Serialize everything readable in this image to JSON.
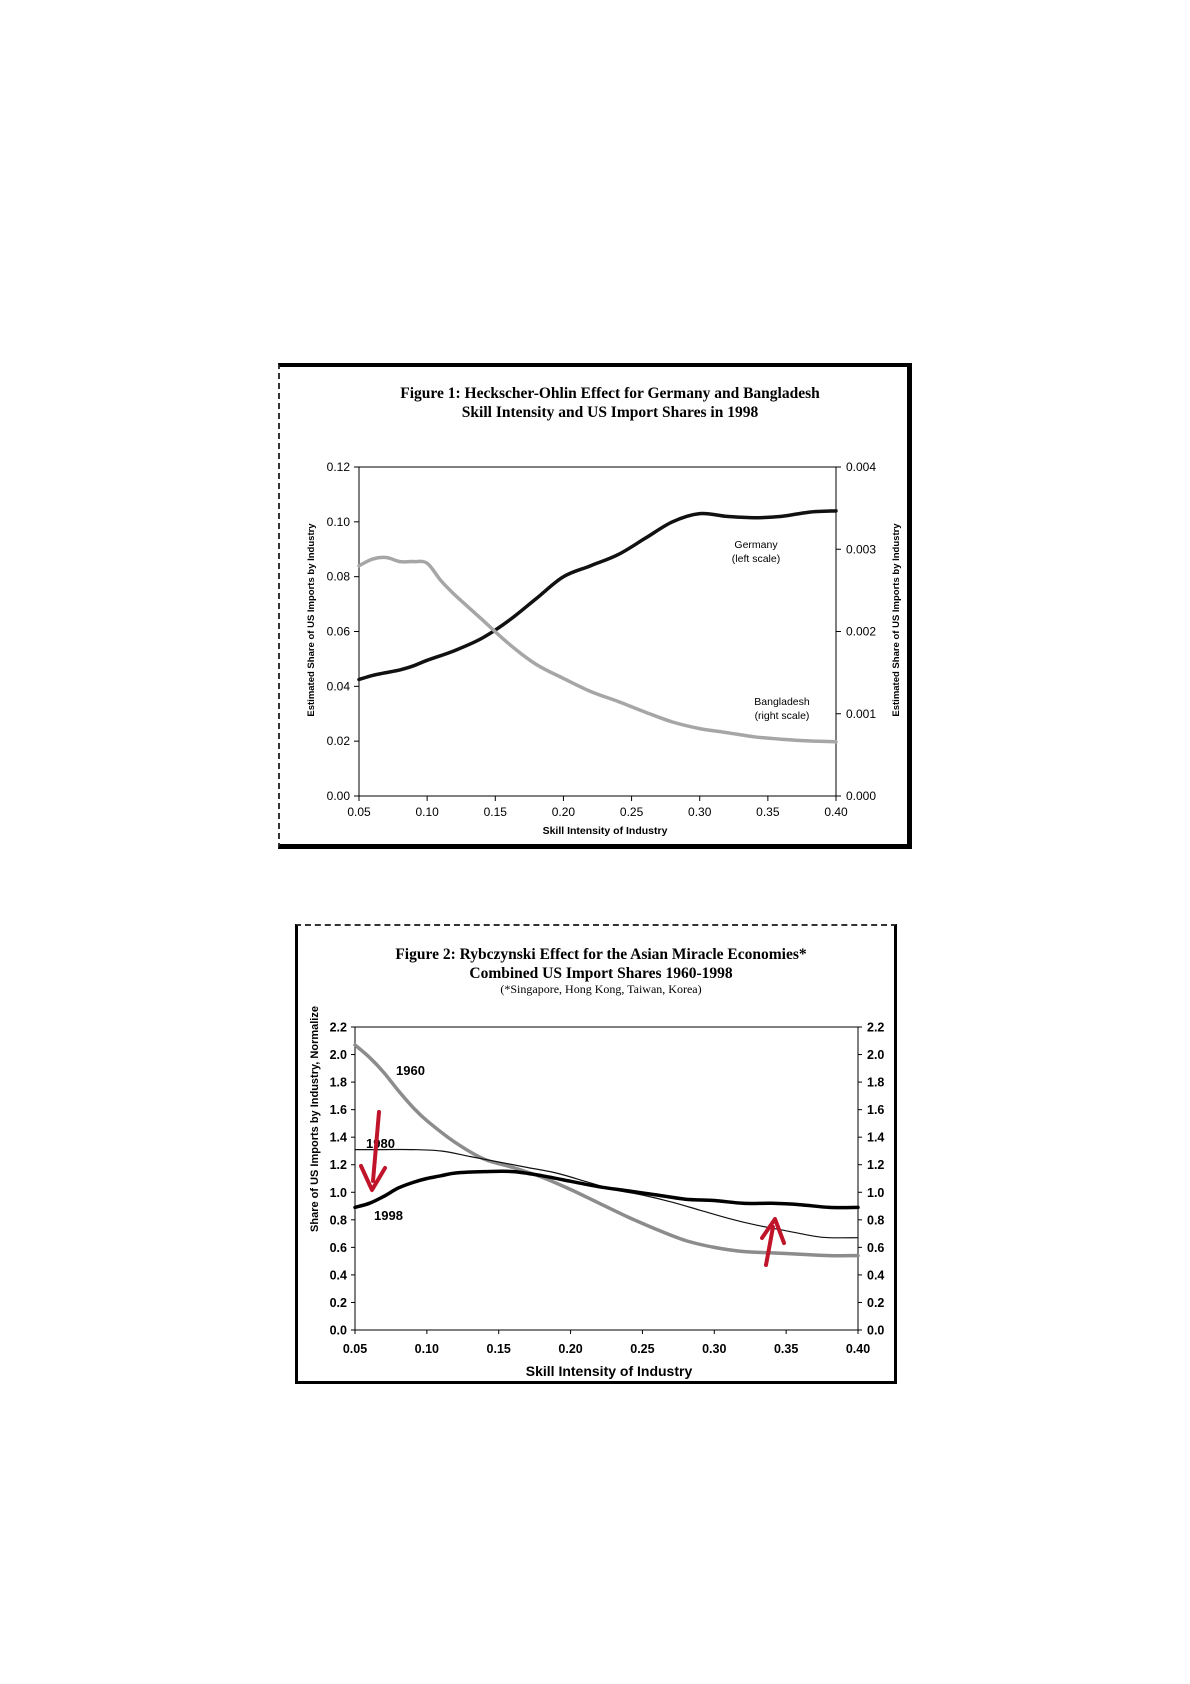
{
  "chart_data": [
    {
      "type": "line",
      "title": "Figure 1: Heckscher-Ohlin Effect for Germany and Bangladesh",
      "subtitle": "Skill Intensity and US Import Shares in 1998",
      "xlabel": "Skill Intensity of Industry",
      "ylabel_left": "Estimated Share of US Imports by Industry",
      "ylabel_right": "Estimated Share of US Imports by Industry",
      "xlim": [
        0.05,
        0.4
      ],
      "ylim_left": [
        0.0,
        0.12
      ],
      "ylim_right": [
        0.0,
        0.004
      ],
      "x_ticks": [
        "0.05",
        "0.10",
        "0.15",
        "0.20",
        "0.25",
        "0.30",
        "0.35",
        "0.40"
      ],
      "y_ticks_left": [
        "0.00",
        "0.02",
        "0.04",
        "0.06",
        "0.08",
        "0.10",
        "0.12"
      ],
      "y_ticks_right": [
        "0.000",
        "0.001",
        "0.002",
        "0.003",
        "0.004"
      ],
      "grid": false,
      "series": [
        {
          "name": "Germany",
          "label_lines": [
            "Germany",
            "(left scale)"
          ],
          "axis": "left",
          "color": "#111111",
          "x": [
            0.05,
            0.06,
            0.07,
            0.08,
            0.09,
            0.1,
            0.12,
            0.14,
            0.16,
            0.18,
            0.2,
            0.22,
            0.24,
            0.26,
            0.28,
            0.3,
            0.32,
            0.34,
            0.36,
            0.38,
            0.4
          ],
          "y": [
            0.0425,
            0.044,
            0.045,
            0.046,
            0.0475,
            0.0495,
            0.053,
            0.0575,
            0.064,
            0.072,
            0.08,
            0.084,
            0.088,
            0.094,
            0.1,
            0.103,
            0.102,
            0.1015,
            0.102,
            0.1035,
            0.104
          ]
        },
        {
          "name": "Bangladesh",
          "label_lines": [
            "Bangladesh",
            "(right scale)"
          ],
          "axis": "right",
          "color": "#a6a6a6",
          "x": [
            0.05,
            0.06,
            0.07,
            0.08,
            0.09,
            0.1,
            0.11,
            0.12,
            0.14,
            0.16,
            0.18,
            0.2,
            0.22,
            0.24,
            0.26,
            0.28,
            0.3,
            0.32,
            0.34,
            0.36,
            0.38,
            0.4
          ],
          "y": [
            0.0028,
            0.00288,
            0.0029,
            0.00285,
            0.00285,
            0.00283,
            0.00262,
            0.00245,
            0.00215,
            0.00185,
            0.0016,
            0.00143,
            0.00127,
            0.00115,
            0.00102,
            0.0009,
            0.00082,
            0.00077,
            0.00072,
            0.00069,
            0.00067,
            0.00066
          ]
        }
      ]
    },
    {
      "type": "line",
      "title": "Figure 2: Rybczynski Effect for the Asian Miracle Economies*",
      "subtitle": "Combined US Import Shares 1960-1998",
      "note": "(*Singapore, Hong Kong, Taiwan, Korea)",
      "xlabel": "Skill Intensity of Industry",
      "ylabel": "Share of US Imports by Industry, Normalize",
      "xlim": [
        0.05,
        0.4
      ],
      "ylim": [
        0.0,
        2.2
      ],
      "x_ticks": [
        "0.05",
        "0.10",
        "0.15",
        "0.20",
        "0.25",
        "0.30",
        "0.35",
        "0.40"
      ],
      "y_ticks": [
        "0.0",
        "0.2",
        "0.4",
        "0.6",
        "0.8",
        "1.0",
        "1.2",
        "1.4",
        "1.6",
        "1.8",
        "2.0",
        "2.2"
      ],
      "grid": false,
      "series": [
        {
          "name": "1960",
          "color": "#8c8c8c",
          "x": [
            0.05,
            0.06,
            0.07,
            0.08,
            0.09,
            0.1,
            0.12,
            0.14,
            0.16,
            0.18,
            0.2,
            0.22,
            0.24,
            0.26,
            0.28,
            0.3,
            0.32,
            0.34,
            0.36,
            0.38,
            0.4
          ],
          "y": [
            2.07,
            1.98,
            1.87,
            1.74,
            1.62,
            1.52,
            1.36,
            1.24,
            1.18,
            1.11,
            1.02,
            0.92,
            0.82,
            0.73,
            0.65,
            0.6,
            0.57,
            0.56,
            0.55,
            0.54,
            0.54
          ]
        },
        {
          "name": "1980",
          "color": "#111111",
          "x": [
            0.05,
            0.07,
            0.09,
            0.11,
            0.13,
            0.15,
            0.17,
            0.19,
            0.21,
            0.23,
            0.25,
            0.27,
            0.29,
            0.31,
            0.33,
            0.35,
            0.37,
            0.38,
            0.4
          ],
          "y": [
            1.31,
            1.31,
            1.31,
            1.3,
            1.26,
            1.22,
            1.18,
            1.14,
            1.08,
            1.02,
            0.98,
            0.93,
            0.87,
            0.81,
            0.76,
            0.72,
            0.68,
            0.67,
            0.67
          ]
        },
        {
          "name": "1998",
          "color": "#000000",
          "x": [
            0.05,
            0.06,
            0.07,
            0.08,
            0.09,
            0.1,
            0.11,
            0.12,
            0.14,
            0.16,
            0.18,
            0.2,
            0.22,
            0.24,
            0.26,
            0.28,
            0.3,
            0.32,
            0.34,
            0.36,
            0.38,
            0.4
          ],
          "y": [
            0.89,
            0.92,
            0.97,
            1.03,
            1.07,
            1.1,
            1.12,
            1.14,
            1.15,
            1.15,
            1.12,
            1.08,
            1.04,
            1.01,
            0.98,
            0.95,
            0.94,
            0.92,
            0.92,
            0.91,
            0.89,
            0.89
          ]
        }
      ],
      "annotations": [
        {
          "type": "arrow",
          "direction": "down",
          "color": "#c0142a"
        },
        {
          "type": "arrow",
          "direction": "up",
          "color": "#c0142a"
        }
      ]
    }
  ]
}
